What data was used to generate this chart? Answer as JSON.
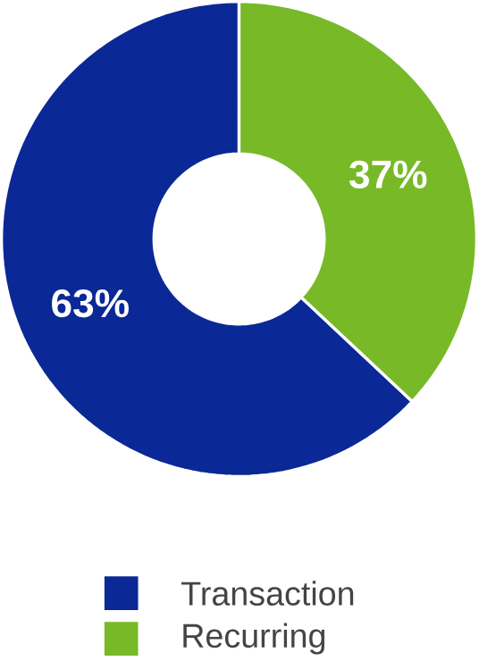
{
  "chart_data": {
    "type": "donut",
    "categories": [
      "Transaction",
      "Recurring"
    ],
    "values": [
      63,
      37
    ],
    "colors": [
      "#0a2896",
      "#78b928"
    ],
    "value_labels": [
      "63%",
      "37%"
    ],
    "legend": "bottom"
  }
}
